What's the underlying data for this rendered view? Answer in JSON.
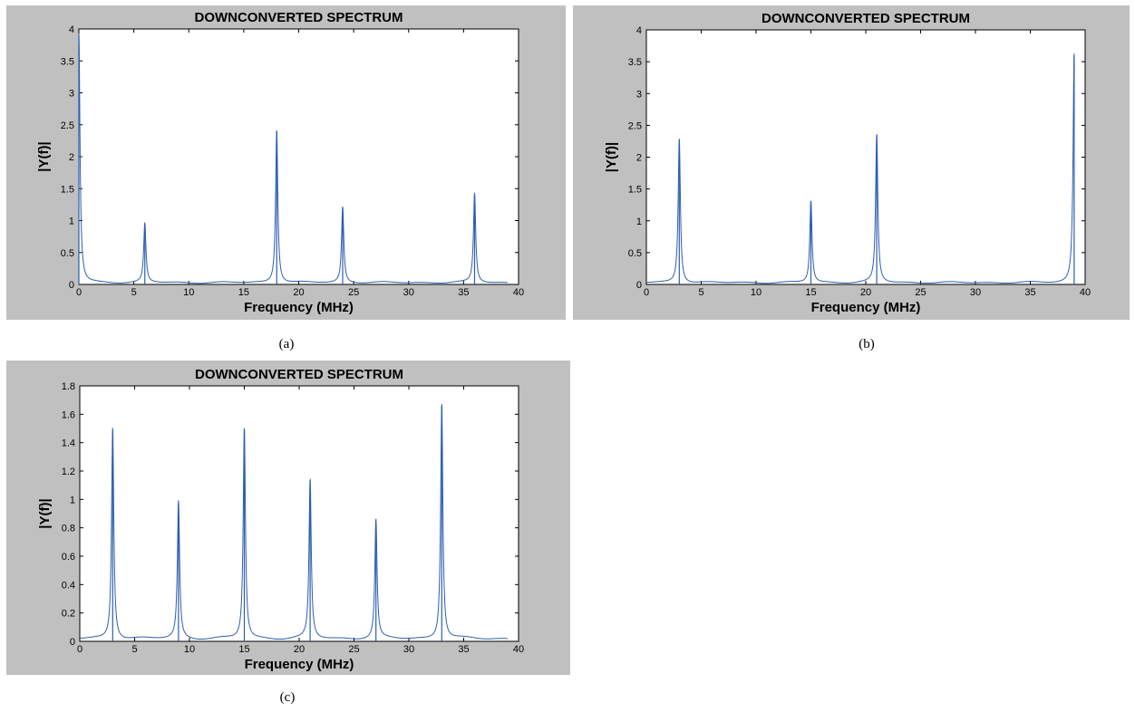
{
  "captions": [
    "(a)",
    "(b)",
    "(c)"
  ],
  "colors": {
    "panel_bg": "#c0c0c0",
    "plot_bg": "#ffffff",
    "line": "#2b5fb0"
  },
  "chart_data": [
    {
      "id": "a",
      "type": "line",
      "title": "DOWNCONVERTED SPECTRUM",
      "xlabel": "Frequency (MHz)",
      "ylabel": "|Y(f)|",
      "xlim": [
        0,
        40
      ],
      "ylim": [
        0,
        4
      ],
      "xticks": [
        0,
        5,
        10,
        15,
        20,
        25,
        30,
        35,
        40
      ],
      "yticks": [
        0,
        0.5,
        1,
        1.5,
        2,
        2.5,
        3,
        3.5,
        4
      ],
      "xtick_labels": [
        "0",
        "5",
        "10",
        "15",
        "20",
        "25",
        "30",
        "35",
        "40"
      ],
      "ytick_labels": [
        "0",
        "0.5",
        "1",
        "1.5",
        "2",
        "2.5",
        "3",
        "3.5",
        "4"
      ],
      "x_range_data": [
        0,
        39
      ],
      "baseline": 0.03,
      "peaks": [
        {
          "f": 0,
          "amp": 3.9
        },
        {
          "f": 6,
          "amp": 0.93
        },
        {
          "f": 18,
          "amp": 2.4
        },
        {
          "f": 24,
          "amp": 1.19
        },
        {
          "f": 36,
          "amp": 1.4
        }
      ]
    },
    {
      "id": "b",
      "type": "line",
      "title": "DOWNCONVERTED SPECTRUM",
      "xlabel": "Frequency (MHz)",
      "ylabel": "|Y(f)|",
      "xlim": [
        0,
        40
      ],
      "ylim": [
        0,
        4
      ],
      "xticks": [
        0,
        5,
        10,
        15,
        20,
        25,
        30,
        35,
        40
      ],
      "yticks": [
        0,
        0.5,
        1,
        1.5,
        2,
        2.5,
        3,
        3.5,
        4
      ],
      "xtick_labels": [
        "0",
        "5",
        "10",
        "15",
        "20",
        "25",
        "30",
        "35",
        "40"
      ],
      "ytick_labels": [
        "0",
        "0.5",
        "1",
        "1.5",
        "2",
        "2.5",
        "3",
        "3.5",
        "4"
      ],
      "x_range_data": [
        0,
        39
      ],
      "baseline": 0.03,
      "peaks": [
        {
          "f": 3,
          "amp": 2.27
        },
        {
          "f": 15,
          "amp": 1.29
        },
        {
          "f": 21,
          "amp": 2.33
        },
        {
          "f": 39,
          "amp": 3.6
        }
      ]
    },
    {
      "id": "c",
      "type": "line",
      "title": "DOWNCONVERTED SPECTRUM",
      "xlabel": "Frequency (MHz)",
      "ylabel": "|Y(f)|",
      "xlim": [
        0,
        40
      ],
      "ylim": [
        0,
        1.8
      ],
      "xticks": [
        0,
        5,
        10,
        15,
        20,
        25,
        30,
        35,
        40
      ],
      "yticks": [
        0,
        0.2,
        0.4,
        0.6,
        0.8,
        1,
        1.2,
        1.4,
        1.6,
        1.8
      ],
      "xtick_labels": [
        "0",
        "5",
        "10",
        "15",
        "20",
        "25",
        "30",
        "35",
        "40"
      ],
      "ytick_labels": [
        "0",
        "0.2",
        "0.4",
        "0.6",
        "0.8",
        "1",
        "1.2",
        "1.4",
        "1.6",
        "1.8"
      ],
      "x_range_data": [
        0,
        39
      ],
      "baseline": 0.02,
      "peaks": [
        {
          "f": 3,
          "amp": 1.49
        },
        {
          "f": 9,
          "amp": 0.97
        },
        {
          "f": 15,
          "amp": 1.49
        },
        {
          "f": 21,
          "amp": 1.12
        },
        {
          "f": 27,
          "amp": 0.84
        },
        {
          "f": 33,
          "amp": 1.66
        }
      ]
    }
  ]
}
